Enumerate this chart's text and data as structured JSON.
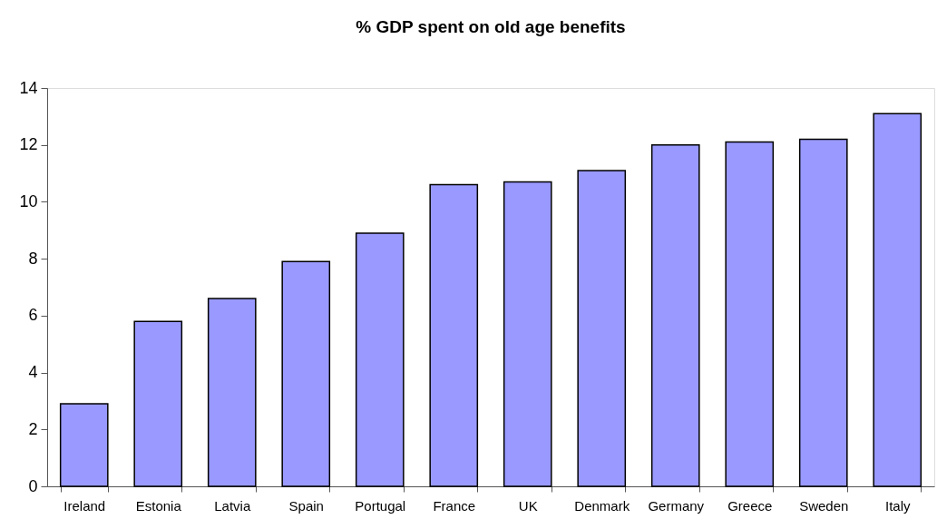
{
  "chart_data": {
    "type": "bar",
    "title": "% GDP spent on old age benefits",
    "categories": [
      "Ireland",
      "Estonia",
      "Latvia",
      "Spain",
      "Portugal",
      "France",
      "UK",
      "Denmark",
      "Germany",
      "Greece",
      "Sweden",
      "Italy"
    ],
    "values": [
      2.9,
      5.8,
      6.6,
      7.9,
      8.9,
      10.6,
      10.7,
      11.1,
      12.0,
      12.1,
      12.2,
      13.1
    ],
    "color": "#9999ff",
    "ylim": [
      0,
      14
    ],
    "yticks": [
      0,
      2,
      4,
      6,
      8,
      10,
      12,
      14
    ],
    "grid": false
  }
}
